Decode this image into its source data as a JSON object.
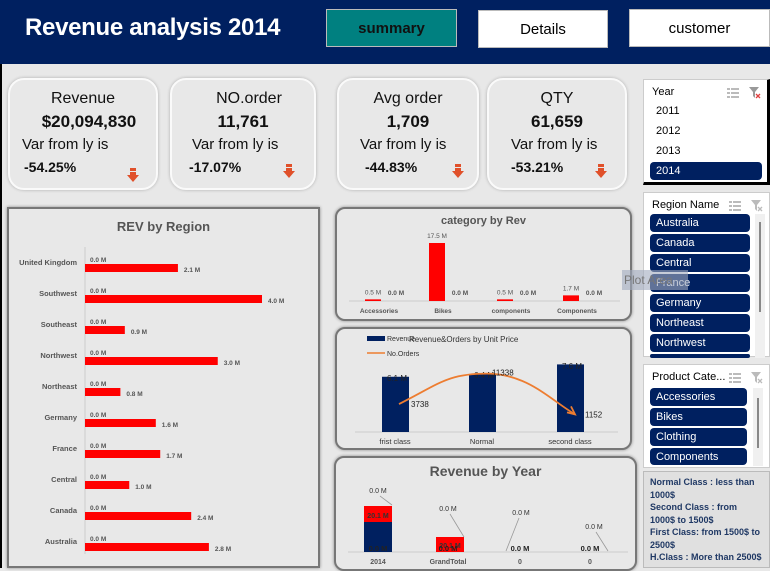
{
  "header": {
    "title": "Revenue analysis 2014",
    "nav": [
      {
        "label": "summary",
        "active": true
      },
      {
        "label": "Details",
        "active": false
      },
      {
        "label": "customer",
        "active": false
      }
    ]
  },
  "kpis": [
    {
      "label": "Revenue",
      "value": "$20,094,830",
      "var_label": "Var from ly is",
      "var_value": "-54.25%",
      "trend": "down"
    },
    {
      "label": "NO.order",
      "value": "11,761",
      "var_label": "Var from ly is",
      "var_value": "-17.07%",
      "trend": "down"
    },
    {
      "label": "Avg order",
      "value": "1,709",
      "var_label": "Var from ly is",
      "var_value": "-44.83%",
      "trend": "down"
    },
    {
      "label": "QTY",
      "value": "61,659",
      "var_label": "Var from ly is",
      "var_value": "-53.21%",
      "trend": "down"
    }
  ],
  "slicers": {
    "year": {
      "title": "Year",
      "items": [
        "2011",
        "2012",
        "2013",
        "2014"
      ],
      "selected": [
        "2014"
      ]
    },
    "region": {
      "title": "Region Name",
      "items": [
        "Australia",
        "Canada",
        "Central",
        "France",
        "Germany",
        "Northeast",
        "Northwest"
      ]
    },
    "category": {
      "title": "Product Cate...",
      "items": [
        "Accessories",
        "Bikes",
        "Clothing",
        "Components"
      ]
    }
  },
  "tooltip": "Plot Area",
  "note": [
    "Normal Class : less than 1000$",
    "Second Class : from 1000$ to 1500$",
    "First Class: from 1500$ to 2500$",
    "H.Class : More than 2500$"
  ],
  "colors": {
    "navy": "#002060",
    "teal": "#008080",
    "red": "#ff0000",
    "orange": "#ed7d31",
    "arrow": "#e0502a"
  },
  "chart_data": [
    {
      "type": "bar",
      "orientation": "horizontal",
      "title": "REV by Region",
      "categories": [
        "United Kingdom",
        "Southwest",
        "Southeast",
        "Northwest",
        "Northeast",
        "Germany",
        "France",
        "Central",
        "Canada",
        "Australia"
      ],
      "series": [
        {
          "name": "Series A",
          "values": [
            0.0,
            0.0,
            0.0,
            0.0,
            0.0,
            0.0,
            0.0,
            0.0,
            0.0,
            0.0
          ],
          "labels": [
            "0.0 M",
            "0.0 M",
            "0.0 M",
            "0.0 M",
            "0.0 M",
            "0.0 M",
            "0.0 M",
            "0.0 M",
            "0.0 M",
            "0.0 M"
          ]
        },
        {
          "name": "Revenue",
          "values": [
            2.1,
            4.0,
            0.9,
            3.0,
            0.8,
            1.6,
            1.7,
            1.0,
            2.4,
            2.8
          ],
          "labels": [
            "2.1 M",
            "4.0 M",
            "0.9 M",
            "3.0 M",
            "0.8 M",
            "1.6 M",
            "1.7 M",
            "1.0 M",
            "2.4 M",
            "2.8 M"
          ]
        }
      ],
      "unit": "M",
      "xlim": [
        0,
        4.0
      ]
    },
    {
      "type": "bar",
      "title": "category by Rev",
      "categories": [
        "Accessories",
        "Bikes",
        "components",
        "Components"
      ],
      "series": [
        {
          "name": "Revenue",
          "values": [
            0.5,
            17.5,
            0.5,
            1.7
          ],
          "labels": [
            "0.5 M",
            "17.5 M",
            "0.5 M",
            "1.7 M"
          ]
        },
        {
          "name": "Series B",
          "values": [
            0.0,
            0.0,
            0.0,
            0.0
          ],
          "labels": [
            "0.0 M",
            "0.0 M",
            "0.0 M",
            "0.0 M"
          ]
        }
      ],
      "unit": "M",
      "ylim": [
        0,
        17.5
      ]
    },
    {
      "type": "bar",
      "combo": "bar+line",
      "title": "Revenue&Orders by Unit Price",
      "categories": [
        "frist class",
        "Normal",
        "second class"
      ],
      "series": [
        {
          "name": "Revenue",
          "type": "bar",
          "values": [
            6.1,
            6.4,
            7.6
          ],
          "labels": [
            "6.1 M",
            "6.4 M",
            "7.6 M"
          ]
        },
        {
          "name": "No.Orders",
          "type": "line",
          "values": [
            3738,
            11338,
            1152
          ],
          "labels": [
            "3738",
            "11338",
            "1152"
          ]
        }
      ],
      "legend": "top-left"
    },
    {
      "type": "bar",
      "stacked": true,
      "title": "Revenue by Year",
      "categories": [
        "2014",
        "GrandTotal",
        "0",
        "0"
      ],
      "series": [
        {
          "name": "Series 1",
          "values": [
            20.1,
            0.0,
            0.0,
            0.0
          ],
          "labels": [
            "20.1 M",
            "0.0 M",
            "0.0 M",
            "0.0 M"
          ]
        },
        {
          "name": "Series 2",
          "values": [
            20.1,
            20.1,
            0.0,
            0.0
          ],
          "labels": [
            "20.1 M",
            "20.1 M",
            "0.0 M",
            "0.0 M"
          ]
        },
        {
          "name": "Series 3",
          "values": [
            0.0,
            0.0,
            0.0,
            0.0
          ],
          "labels": [
            "0.0 M",
            "0.0 M",
            "0.0 M",
            "0.0 M"
          ]
        }
      ],
      "callouts": [
        "0.0 M",
        "0.0 M",
        "0.0 M",
        "0.0 M"
      ]
    }
  ]
}
